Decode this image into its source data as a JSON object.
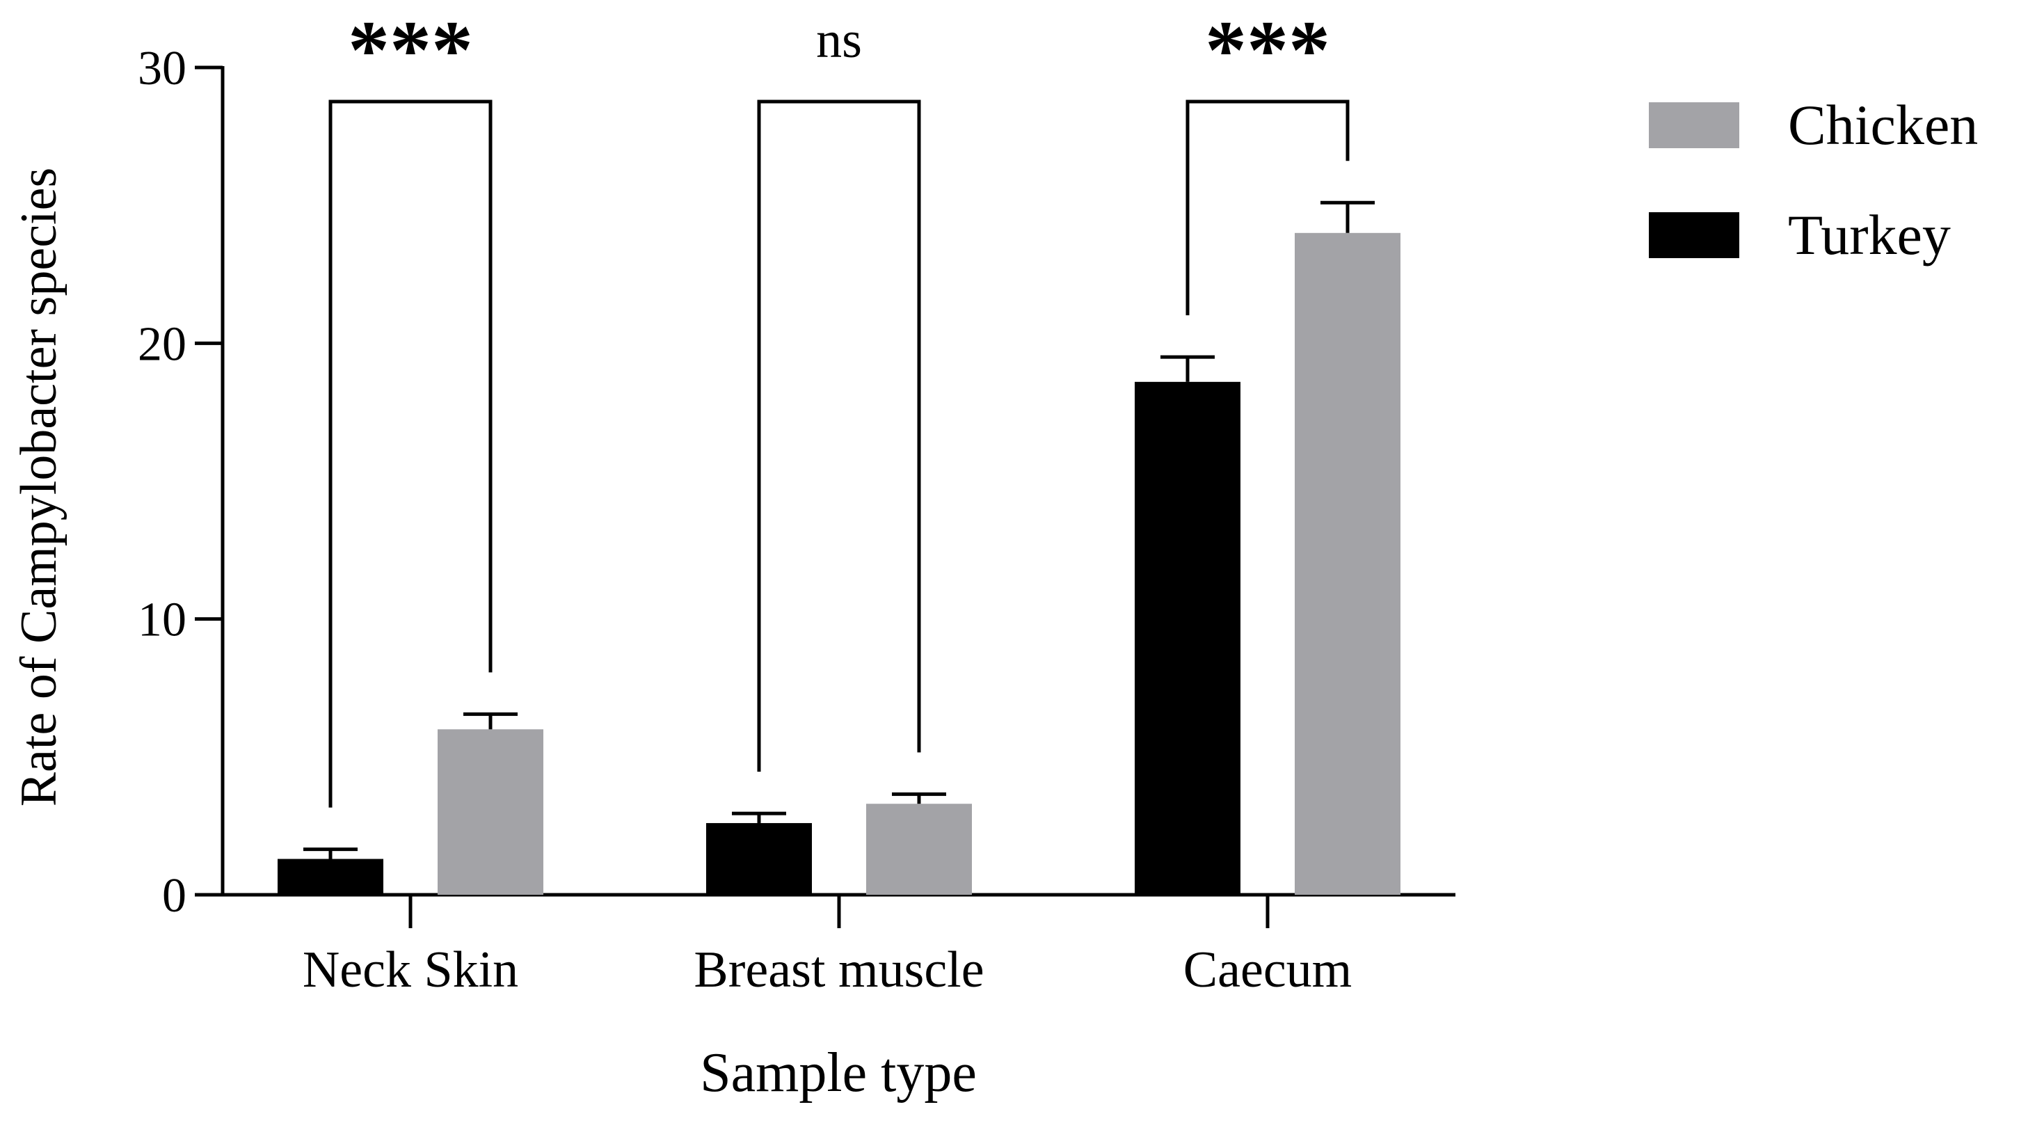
{
  "chart_data": {
    "type": "bar",
    "title": "",
    "xlabel": "Sample type",
    "ylabel": "Rate of Campylobacter species",
    "ylim": [
      0,
      30
    ],
    "yticks": [
      0,
      10,
      20,
      30
    ],
    "categories": [
      "Neck Skin",
      "Breast muscle",
      "Caecum"
    ],
    "series": [
      {
        "name": "Turkey",
        "color": "#000000",
        "values": [
          1.3,
          2.6,
          18.6
        ],
        "errors": [
          0.35,
          0.35,
          0.9
        ]
      },
      {
        "name": "Chicken",
        "color": "#a3a3a7",
        "values": [
          6.0,
          3.3,
          24.0
        ],
        "errors": [
          0.55,
          0.35,
          1.1
        ]
      }
    ],
    "legend": {
      "position": "top-right",
      "order": [
        "Chicken",
        "Turkey"
      ]
    },
    "grid": false,
    "annotations": [
      {
        "category_index": 0,
        "label": "***"
      },
      {
        "category_index": 1,
        "label": "ns"
      },
      {
        "category_index": 2,
        "label": "***"
      }
    ]
  }
}
